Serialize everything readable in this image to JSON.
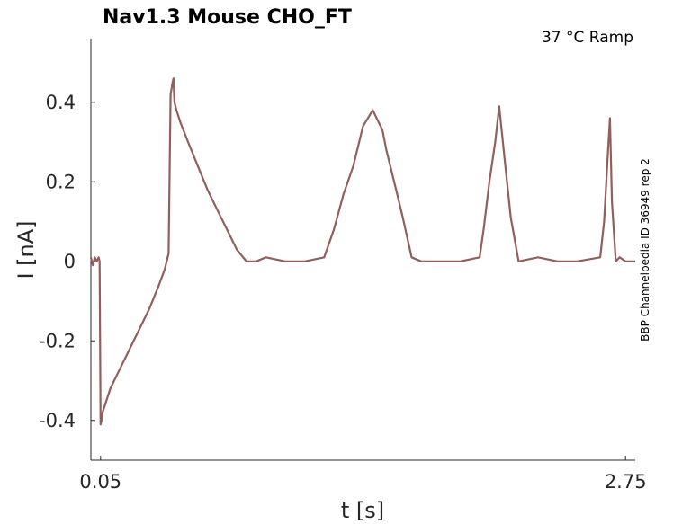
{
  "chart_data": {
    "type": "line",
    "title": "Nav1.3  Mouse  CHO_FT",
    "condition": "37 °C  Ramp",
    "side_label": "BBP Channelpedia ID 36949 rep 2",
    "xlabel": "t [s]",
    "ylabel": "I [nA]",
    "xlim": [
      0.0,
      2.8
    ],
    "ylim": [
      -0.5,
      0.56
    ],
    "x_ticks": [
      0.05,
      2.75
    ],
    "x_tick_labels": [
      "0.05",
      "2.75"
    ],
    "y_ticks": [
      -0.4,
      -0.2,
      0,
      0.2,
      0.4
    ],
    "y_tick_labels": [
      "-0.4",
      "-0.2",
      "0",
      "0.2",
      "0.4"
    ],
    "grid": false,
    "line_color": "#915f5c",
    "series": [
      {
        "x": [
          0.0,
          0.01,
          0.02,
          0.03,
          0.04,
          0.045,
          0.05,
          0.055,
          0.06,
          0.08,
          0.1,
          0.15,
          0.2,
          0.25,
          0.3,
          0.35,
          0.38,
          0.4,
          0.41,
          0.42,
          0.425,
          0.43,
          0.44,
          0.46,
          0.5,
          0.55,
          0.6,
          0.65,
          0.7,
          0.75,
          0.8,
          0.85,
          0.9,
          1.0,
          1.1,
          1.2,
          1.25,
          1.3,
          1.35,
          1.4,
          1.45,
          1.5,
          1.52,
          1.55,
          1.6,
          1.65,
          1.7,
          1.8,
          1.9,
          2.0,
          2.02,
          2.05,
          2.08,
          2.1,
          2.13,
          2.16,
          2.2,
          2.3,
          2.4,
          2.5,
          2.62,
          2.64,
          2.66,
          2.67,
          2.68,
          2.7,
          2.72,
          2.75,
          2.8
        ],
        "y": [
          0.01,
          -0.01,
          0.01,
          0.0,
          0.01,
          0.0,
          -0.41,
          -0.4,
          -0.38,
          -0.35,
          -0.32,
          -0.27,
          -0.22,
          -0.17,
          -0.12,
          -0.06,
          -0.02,
          0.02,
          0.42,
          0.45,
          0.46,
          0.4,
          0.38,
          0.35,
          0.3,
          0.24,
          0.18,
          0.13,
          0.08,
          0.03,
          0.0,
          0.0,
          0.01,
          0.0,
          0.0,
          0.01,
          0.08,
          0.17,
          0.24,
          0.34,
          0.38,
          0.33,
          0.28,
          0.22,
          0.12,
          0.01,
          0.0,
          0.0,
          0.0,
          0.01,
          0.08,
          0.2,
          0.3,
          0.39,
          0.25,
          0.11,
          0.0,
          0.01,
          0.0,
          0.0,
          0.01,
          0.1,
          0.28,
          0.36,
          0.15,
          0.0,
          0.01,
          0.0,
          0.0
        ]
      }
    ]
  }
}
